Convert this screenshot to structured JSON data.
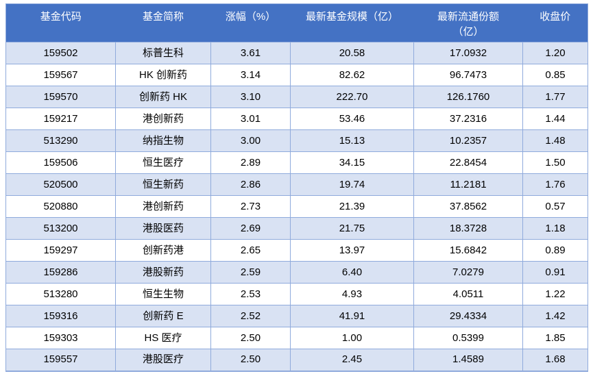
{
  "table": {
    "columns": [
      {
        "label": "基金代码"
      },
      {
        "label": "基金简称"
      },
      {
        "label": "涨幅（%）"
      },
      {
        "label": "最新基金规模（亿）"
      },
      {
        "label": "最新流通份额",
        "label2": "（亿）"
      },
      {
        "label": "收盘价"
      }
    ],
    "rows": [
      [
        "159502",
        "标普生科",
        "3.61",
        "20.58",
        "17.0932",
        "1.20"
      ],
      [
        "159567",
        "HK 创新药",
        "3.14",
        "82.62",
        "96.7473",
        "0.85"
      ],
      [
        "159570",
        "创新药 HK",
        "3.10",
        "222.70",
        "126.1760",
        "1.77"
      ],
      [
        "159217",
        "港创新药",
        "3.01",
        "53.46",
        "37.2316",
        "1.44"
      ],
      [
        "513290",
        "纳指生物",
        "3.00",
        "15.13",
        "10.2357",
        "1.48"
      ],
      [
        "159506",
        "恒生医疗",
        "2.89",
        "34.15",
        "22.8454",
        "1.50"
      ],
      [
        "520500",
        "恒生新药",
        "2.86",
        "19.74",
        "11.2181",
        "1.76"
      ],
      [
        "520880",
        "港创新药",
        "2.73",
        "21.39",
        "37.8562",
        "0.57"
      ],
      [
        "513200",
        "港股医药",
        "2.69",
        "21.75",
        "18.3728",
        "1.18"
      ],
      [
        "159297",
        "创新药港",
        "2.65",
        "13.97",
        "15.6842",
        "0.89"
      ],
      [
        "159286",
        "港股新药",
        "2.59",
        "6.40",
        "7.0279",
        "0.91"
      ],
      [
        "513280",
        "恒生生物",
        "2.53",
        "4.93",
        "4.0511",
        "1.22"
      ],
      [
        "159316",
        "创新药 E",
        "2.52",
        "41.91",
        "29.4334",
        "1.42"
      ],
      [
        "159303",
        "HS 医疗",
        "2.50",
        "1.00",
        "0.5399",
        "1.85"
      ],
      [
        "159557",
        "港股医疗",
        "2.50",
        "2.45",
        "1.4589",
        "1.68"
      ]
    ]
  },
  "colors": {
    "header_bg": "#4472C4",
    "header_text": "#FFFFFF",
    "band_row_bg": "#D9E2F3",
    "plain_row_bg": "#FFFFFF",
    "border": "#8FAADC",
    "cell_text": "#000000"
  }
}
